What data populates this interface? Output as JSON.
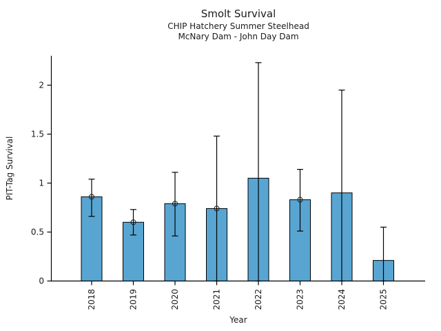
{
  "figure": {
    "title": "Smolt Survival",
    "subtitle1": "CHIP Hatchery Summer Steelhead",
    "subtitle2": "McNary Dam - John Day Dam"
  },
  "chart_data": {
    "type": "bar",
    "title": "Smolt Survival",
    "subtitle": [
      "CHIP Hatchery Summer Steelhead",
      "McNary Dam - John Day Dam"
    ],
    "xlabel": "Year",
    "ylabel": "PIT-Tag Survival",
    "categories": [
      "2018",
      "2019",
      "2020",
      "2021",
      "2022",
      "2023",
      "2024",
      "2025"
    ],
    "values": [
      0.86,
      0.6,
      0.79,
      0.74,
      1.05,
      0.83,
      0.9,
      0.21
    ],
    "error_low": [
      0.66,
      0.47,
      0.46,
      0.0,
      0.0,
      0.51,
      0.0,
      0.0
    ],
    "error_high": [
      1.04,
      0.73,
      1.11,
      1.48,
      2.23,
      1.14,
      1.95,
      0.55
    ],
    "point_markers": [
      true,
      true,
      true,
      true,
      false,
      true,
      false,
      false
    ],
    "ytick_labels": [
      "0",
      "0.5",
      "1",
      "1.5",
      "2"
    ],
    "ytick_values": [
      0,
      0.5,
      1,
      1.5,
      2
    ],
    "ylim": [
      0,
      2.3
    ],
    "xtick_rotation_deg": 90,
    "grid": false,
    "legend": null,
    "bar_color": "#58a5d2",
    "bar_edge_color": "#000000",
    "error_color": "#000000",
    "axis_color": "#000000"
  }
}
